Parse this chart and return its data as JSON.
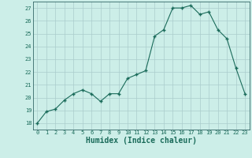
{
  "x": [
    0,
    1,
    2,
    3,
    4,
    5,
    6,
    7,
    8,
    9,
    10,
    11,
    12,
    13,
    14,
    15,
    16,
    17,
    18,
    19,
    20,
    21,
    22,
    23
  ],
  "y": [
    18.0,
    18.9,
    19.1,
    19.8,
    20.3,
    20.6,
    20.3,
    19.7,
    20.3,
    20.3,
    21.5,
    21.8,
    22.1,
    24.8,
    25.3,
    27.0,
    27.0,
    27.2,
    26.5,
    26.7,
    25.3,
    24.6,
    22.3,
    20.3
  ],
  "xlabel": "Humidex (Indice chaleur)",
  "ylim": [
    17.5,
    27.5
  ],
  "xlim": [
    -0.5,
    23.5
  ],
  "yticks": [
    18,
    19,
    20,
    21,
    22,
    23,
    24,
    25,
    26,
    27
  ],
  "xticks": [
    0,
    1,
    2,
    3,
    4,
    5,
    6,
    7,
    8,
    9,
    10,
    11,
    12,
    13,
    14,
    15,
    16,
    17,
    18,
    19,
    20,
    21,
    22,
    23
  ],
  "xtick_labels": [
    "0",
    "1",
    "2",
    "3",
    "4",
    "5",
    "6",
    "7",
    "8",
    "9",
    "10",
    "11",
    "12",
    "13",
    "14",
    "15",
    "16",
    "17",
    "18",
    "19",
    "20",
    "21",
    "22",
    "23"
  ],
  "line_color": "#1a6b5a",
  "marker_color": "#1a6b5a",
  "bg_color": "#cceee8",
  "grid_color": "#aacccc",
  "fig_bg": "#cceee8",
  "tick_color": "#1a6b5a",
  "label_fontsize": 5.0,
  "xlabel_fontsize": 7.0
}
